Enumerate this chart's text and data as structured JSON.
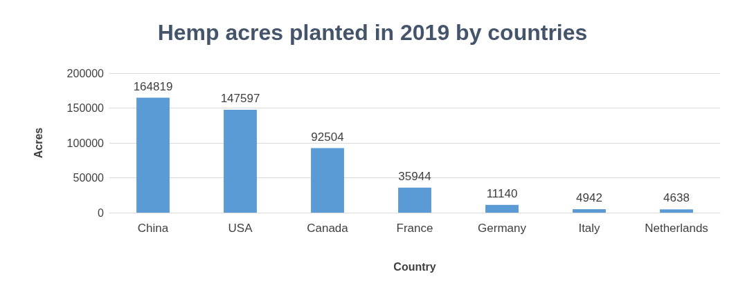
{
  "chart_data": {
    "type": "bar",
    "title": "Hemp acres planted in 2019 by countries",
    "xlabel": "Country",
    "ylabel": "Acres",
    "categories": [
      "China",
      "USA",
      "Canada",
      "France",
      "Germany",
      "Italy",
      "Netherlands"
    ],
    "values": [
      164819,
      147597,
      92504,
      35944,
      11140,
      4942,
      4638
    ],
    "color": "#5b9bd5",
    "ylim": [
      0,
      200000
    ],
    "yticks": [
      0,
      50000,
      100000,
      150000,
      200000
    ],
    "grid": "y",
    "data_labels": true
  }
}
